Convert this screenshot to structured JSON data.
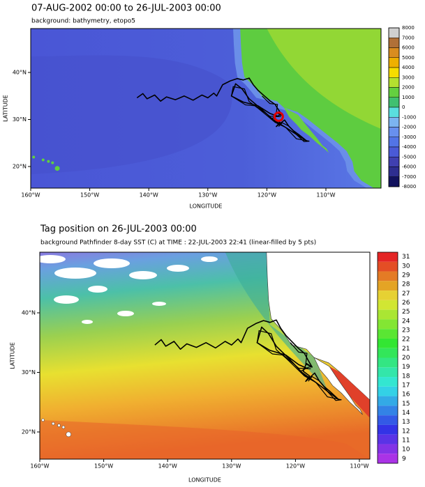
{
  "panels": [
    {
      "title": "07-AUG-2002 00:00 to 26-JUL-2003 00:00",
      "subtitle": "background: bathymetry, etopo5",
      "x_label": "LONGITUDE",
      "y_label": "LATITUDE",
      "x_ticks": [
        "160°W",
        "150°W",
        "140°W",
        "130°W",
        "120°W",
        "110°W"
      ],
      "y_ticks": [
        "40°N",
        "30°N",
        "20°N"
      ],
      "colorbar": [
        "8000",
        "7000",
        "6000",
        "5000",
        "4000",
        "3000",
        "2000",
        "1000",
        "0",
        "-1000",
        "-2000",
        "-3000",
        "-4000",
        "-5000",
        "-6000",
        "-7000",
        "-8000"
      ]
    },
    {
      "title": "Tag position on 26-JUL-2003 00:00",
      "subtitle": "background Pathfinder 8-day SST (C) at TIME : 22-JUL-2003 22:41 (linear-filled by 5 pts)",
      "x_label": "LONGITUDE",
      "y_label": "LATITUDE",
      "x_ticks": [
        "160°W",
        "150°W",
        "140°W",
        "130°W",
        "120°W",
        "110°W"
      ],
      "y_ticks": [
        "40°N",
        "30°N",
        "20°N"
      ],
      "colorbar": [
        "31",
        "30",
        "29",
        "28",
        "27",
        "26",
        "25",
        "24",
        "23",
        "22",
        "21",
        "20",
        "19",
        "18",
        "17",
        "16",
        "15",
        "14",
        "13",
        "12",
        "11",
        "10",
        "9"
      ]
    }
  ]
}
